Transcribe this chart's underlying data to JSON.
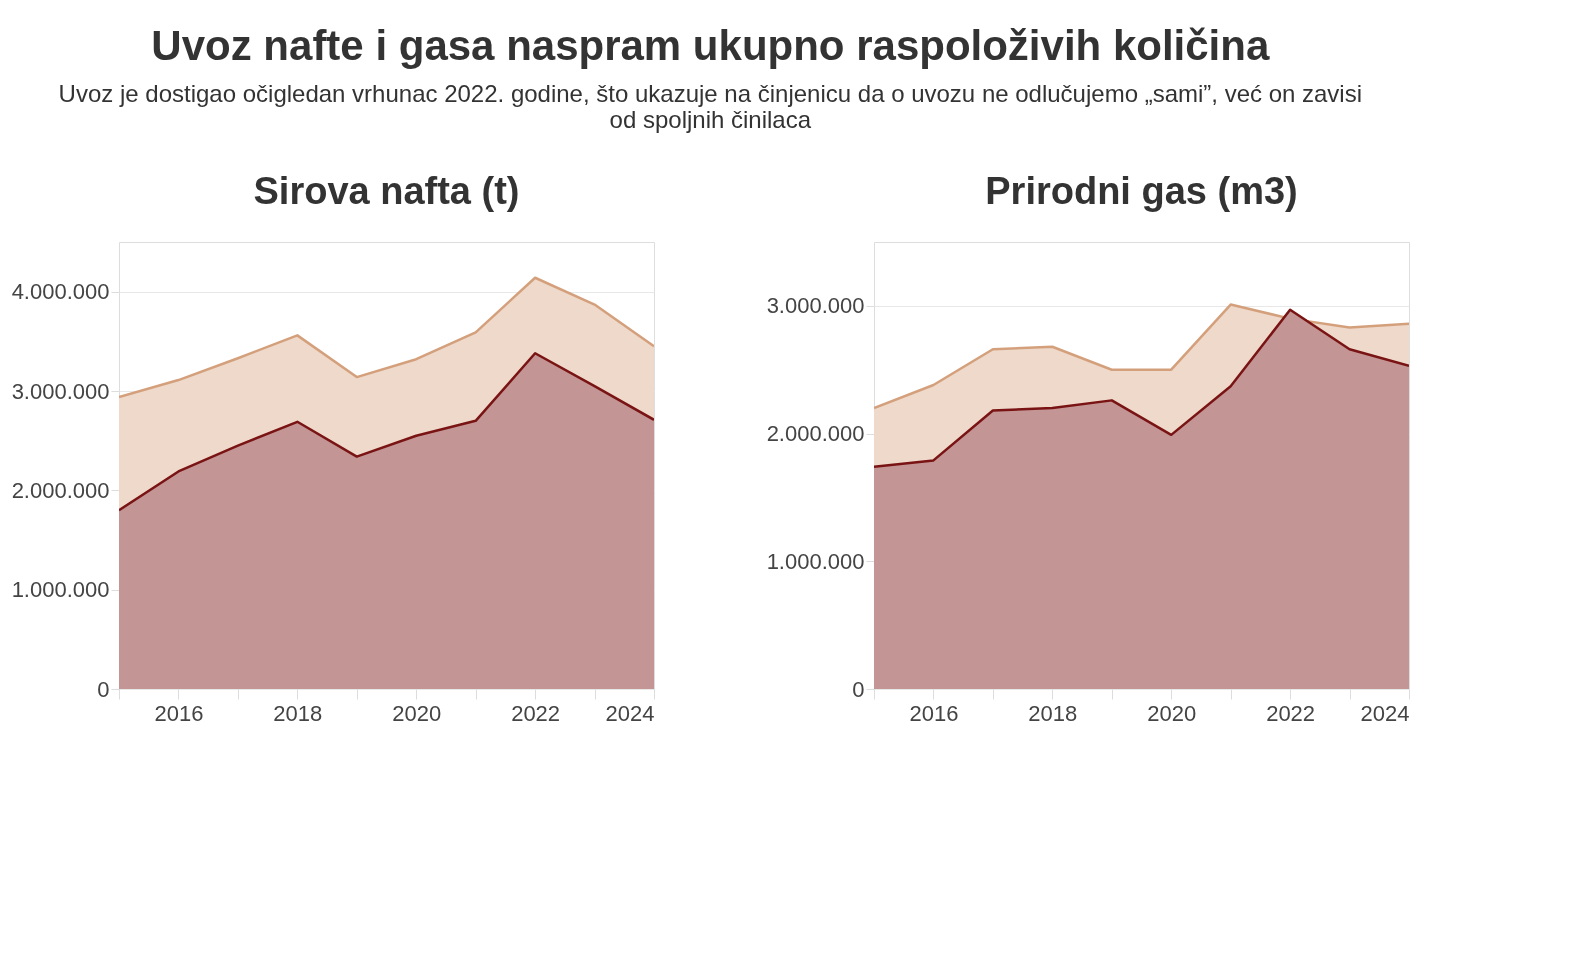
{
  "chart_data": [
    {
      "type": "area",
      "title": "Sirova nafta (t)",
      "x": [
        2015,
        2016,
        2017,
        2018,
        2019,
        2020,
        2021,
        2022,
        2023,
        2024
      ],
      "series": [
        {
          "color": "#d4a07c",
          "values": [
            2940000,
            3110000,
            3330000,
            3560000,
            3140000,
            3320000,
            3590000,
            4140000,
            3870000,
            3450000
          ]
        },
        {
          "color": "#7a1414",
          "values": [
            1800000,
            2190000,
            2450000,
            2690000,
            2340000,
            2550000,
            2700000,
            3380000,
            3050000,
            2710000
          ]
        }
      ],
      "xlim": [
        2015,
        2024
      ],
      "xticks": [
        {
          "value": 2015,
          "label": null
        },
        2016,
        {
          "value": 2017,
          "label": null
        },
        2018,
        {
          "value": 2019,
          "label": null
        },
        2020,
        {
          "value": 2021,
          "label": null
        },
        2022,
        {
          "value": 2023,
          "label": null
        },
        2024
      ],
      "ylim": [
        0,
        4500000
      ],
      "yticks": [
        0,
        {
          "value": 1000000,
          "label": "1.000.000"
        },
        {
          "value": 2000000,
          "label": "2.000.000"
        },
        {
          "value": 3000000,
          "label": "3.000.000"
        },
        {
          "value": 4000000,
          "label": "4.000.000"
        }
      ],
      "grid": "y"
    },
    {
      "type": "area",
      "title": "Prirodni gas (m3)",
      "x": [
        2015,
        2016,
        2017,
        2018,
        2019,
        2020,
        2021,
        2022,
        2023,
        2024
      ],
      "series": [
        {
          "color": "#d4a07c",
          "values": [
            2200000,
            2380000,
            2660000,
            2680000,
            2500000,
            2500000,
            3010000,
            2900000,
            2830000,
            2860000
          ]
        },
        {
          "color": "#7a1414",
          "values": [
            1740000,
            1790000,
            2180000,
            2200000,
            2260000,
            1990000,
            2370000,
            2970000,
            2660000,
            2530000
          ]
        }
      ],
      "xlim": [
        2015,
        2024
      ],
      "xticks": [
        {
          "value": 2015,
          "label": null
        },
        2016,
        {
          "value": 2017,
          "label": null
        },
        2018,
        {
          "value": 2019,
          "label": null
        },
        2020,
        {
          "value": 2021,
          "label": null
        },
        2022,
        {
          "value": 2023,
          "label": null
        },
        2024
      ],
      "ylim": [
        0,
        3500000
      ],
      "yticks": [
        0,
        {
          "value": 1000000,
          "label": "1.000.000"
        },
        {
          "value": 2000000,
          "label": "2.000.000"
        },
        {
          "value": 3000000,
          "label": "3.000.000"
        }
      ],
      "grid": "y"
    },
    {
      "type": "other",
      "title": "Uvoz nafte i gasa naspram ukupno raspoloživih količina",
      "subtitle": "Uvoz je dostigao očigledan vrhunac 2022. godine, što ukazuje na činjenicu da o uvozu ne odlučujemo „sami”, već on zavisi od spoljnih činilaca"
    }
  ]
}
